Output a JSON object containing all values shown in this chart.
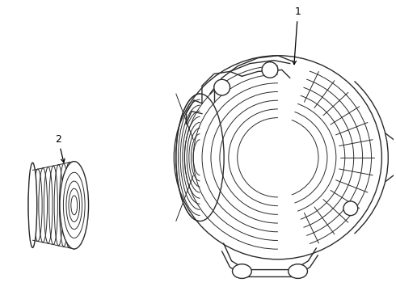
{
  "bg_color": "#ffffff",
  "line_color": "#2a2a2a",
  "label_color": "#000000",
  "label_1": "1",
  "label_2": "2",
  "figsize": [
    4.9,
    3.6
  ],
  "dpi": 100
}
